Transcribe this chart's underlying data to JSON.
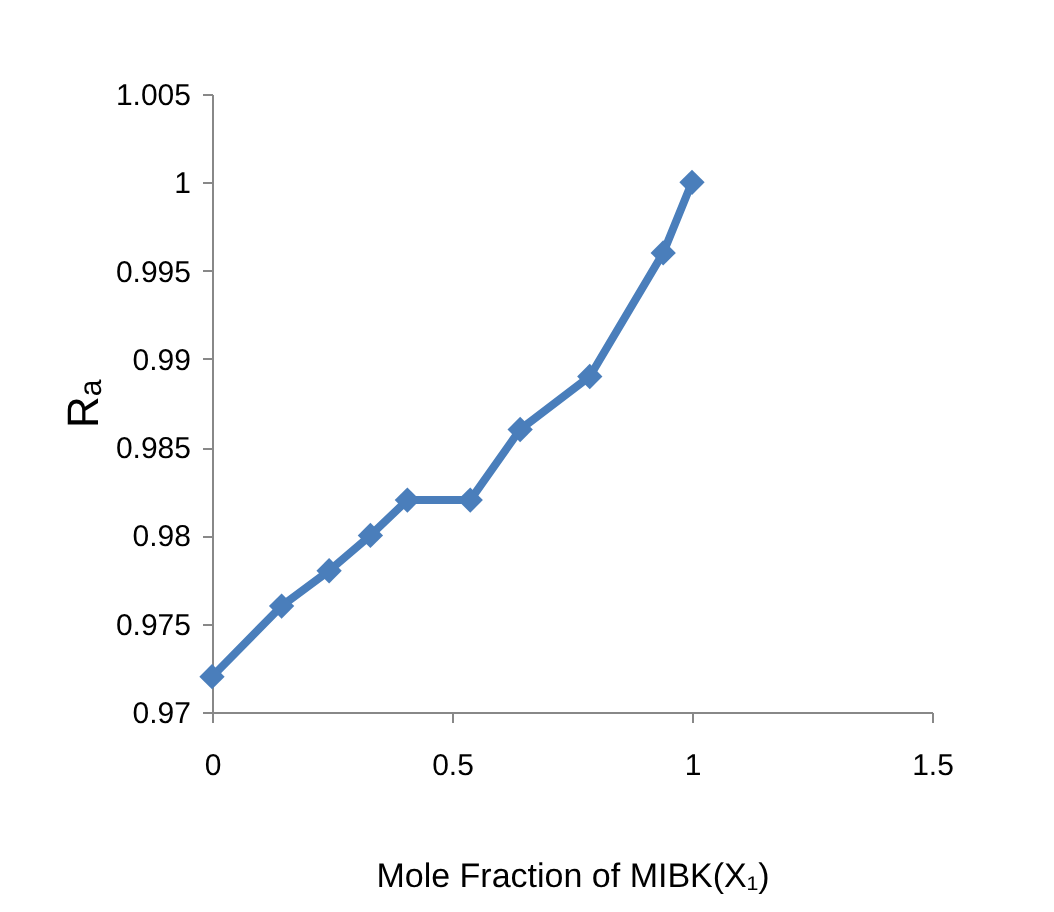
{
  "chart_data": {
    "type": "line",
    "xlabel": "Mole Fraction of MIBK(X₁)",
    "ylabel": "Rₐ",
    "x": [
      0,
      0.145,
      0.244,
      0.33,
      0.407,
      0.538,
      0.642,
      0.787,
      0.94,
      1.0
    ],
    "series": [
      {
        "color": "#4a7ebb",
        "values": [
          0.972,
          0.976,
          0.978,
          0.98,
          0.982,
          0.982,
          0.986,
          0.989,
          0.996,
          1.0
        ]
      }
    ],
    "xlim": [
      0,
      1.5
    ],
    "xticks": [
      0,
      0.5,
      1,
      1.5
    ],
    "ylim": [
      0.97,
      1.005
    ],
    "yticks": [
      0.97,
      0.975,
      0.98,
      0.985,
      0.99,
      0.995,
      1,
      1.005
    ],
    "grid": false,
    "legend": false,
    "marker": "diamond",
    "line_style": "solid"
  }
}
